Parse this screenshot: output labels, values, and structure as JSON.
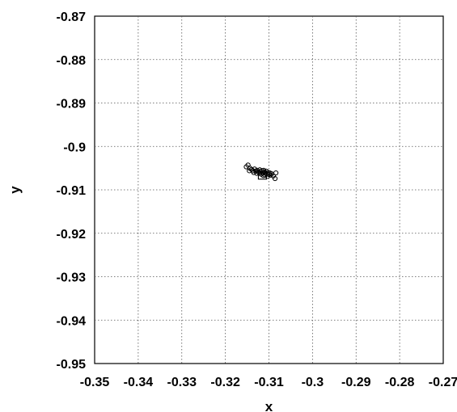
{
  "chart_data": {
    "type": "scatter",
    "title": "",
    "xlabel": "x",
    "ylabel": "y",
    "xlim": [
      -0.35,
      -0.27
    ],
    "ylim": [
      -0.95,
      -0.87
    ],
    "xticks": [
      -0.35,
      -0.34,
      -0.33,
      -0.32,
      -0.31,
      -0.3,
      -0.29,
      -0.28,
      -0.27
    ],
    "yticks": [
      -0.87,
      -0.88,
      -0.89,
      -0.9,
      -0.91,
      -0.92,
      -0.93,
      -0.94,
      -0.95
    ],
    "xtick_labels": [
      "-0.35",
      "-0.34",
      "-0.33",
      "-0.32",
      "-0.31",
      "-0.3",
      "-0.29",
      "-0.28",
      "-0.27"
    ],
    "ytick_labels": [
      "-0.87",
      "-0.88",
      "-0.89",
      "-0.9",
      "-0.91",
      "-0.92",
      "-0.93",
      "-0.94",
      "-0.95"
    ],
    "grid": true,
    "series": [
      {
        "marker": "circle",
        "points": [
          [
            -0.3148,
            -0.9043
          ],
          [
            -0.3152,
            -0.9047
          ],
          [
            -0.3144,
            -0.905
          ],
          [
            -0.314,
            -0.9053
          ],
          [
            -0.3137,
            -0.9056
          ],
          [
            -0.3133,
            -0.9052
          ],
          [
            -0.313,
            -0.9057
          ],
          [
            -0.3127,
            -0.9055
          ],
          [
            -0.3124,
            -0.9059
          ],
          [
            -0.3121,
            -0.9054
          ],
          [
            -0.3119,
            -0.9058
          ],
          [
            -0.3116,
            -0.9056
          ],
          [
            -0.3114,
            -0.9061
          ],
          [
            -0.3112,
            -0.9055
          ],
          [
            -0.311,
            -0.9059
          ],
          [
            -0.3108,
            -0.9062
          ],
          [
            -0.3106,
            -0.9057
          ],
          [
            -0.3104,
            -0.9063
          ],
          [
            -0.3102,
            -0.906
          ],
          [
            -0.31,
            -0.9065
          ],
          [
            -0.3098,
            -0.9061
          ],
          [
            -0.3096,
            -0.9066
          ],
          [
            -0.3135,
            -0.906
          ],
          [
            -0.3128,
            -0.9062
          ],
          [
            -0.3118,
            -0.9064
          ],
          [
            -0.3109,
            -0.9066
          ],
          [
            -0.3145,
            -0.9056
          ],
          [
            -0.3094,
            -0.9063
          ],
          [
            -0.309,
            -0.9068
          ],
          [
            -0.3086,
            -0.9074
          ],
          [
            -0.3084,
            -0.9061
          ],
          [
            -0.3122,
            -0.9061
          ],
          [
            -0.3113,
            -0.9067
          ],
          [
            -0.3103,
            -0.9069
          ]
        ]
      },
      {
        "marker": "square",
        "points": [
          [
            -0.3115,
            -0.9066
          ]
        ]
      }
    ]
  }
}
